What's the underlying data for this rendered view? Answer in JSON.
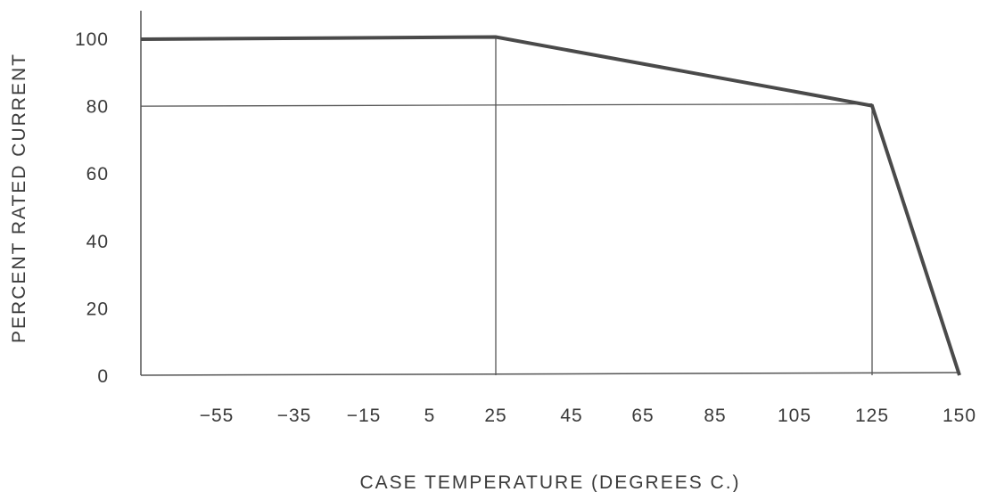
{
  "chart_data": {
    "type": "line",
    "title": "",
    "xlabel": "CASE TEMPERATURE (DEGREES C.)",
    "ylabel": "PERCENT RATED CURRENT",
    "x_ticks": [
      "-55",
      "-35",
      "-15",
      "5",
      "25",
      "45",
      "65",
      "85",
      "105",
      "125",
      "150"
    ],
    "y_ticks": [
      "0",
      "20",
      "40",
      "60",
      "80",
      "100"
    ],
    "ylim": [
      0,
      100
    ],
    "series": [
      {
        "x": [
          "min",
          "25",
          "125",
          "150"
        ],
        "values": [
          100,
          100,
          80,
          0
        ]
      }
    ],
    "reference_lines": [
      {
        "axis": "y",
        "value": 80
      },
      {
        "axis": "x",
        "value": "25"
      },
      {
        "axis": "x",
        "value": "125"
      }
    ],
    "grid": false,
    "legend": "none",
    "colors": {
      "curve": "#4a4a4a",
      "axes": "#555555",
      "text": "#3a3a3a"
    }
  }
}
